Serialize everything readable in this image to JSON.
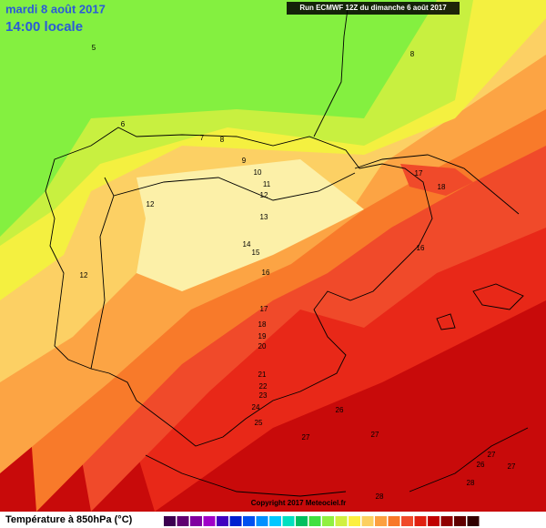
{
  "header": {
    "title": "mardi 8 août 2017",
    "subtitle": "14:00 locale",
    "run": "Run ECMWF 12Z du dimanche 6 août 2017"
  },
  "contour_labels": [
    5,
    8,
    6,
    7,
    8,
    9,
    10,
    11,
    12,
    12,
    13,
    14,
    15,
    16,
    17,
    18,
    16,
    12,
    17,
    18,
    19,
    20,
    21,
    22,
    23,
    24,
    25,
    26,
    27,
    27,
    27,
    26,
    27,
    28,
    28
  ],
  "footer": {
    "legend": "Température à 850hPa (°C)",
    "copyright": "Copyright 2017 Meteociel.fr"
  }
}
